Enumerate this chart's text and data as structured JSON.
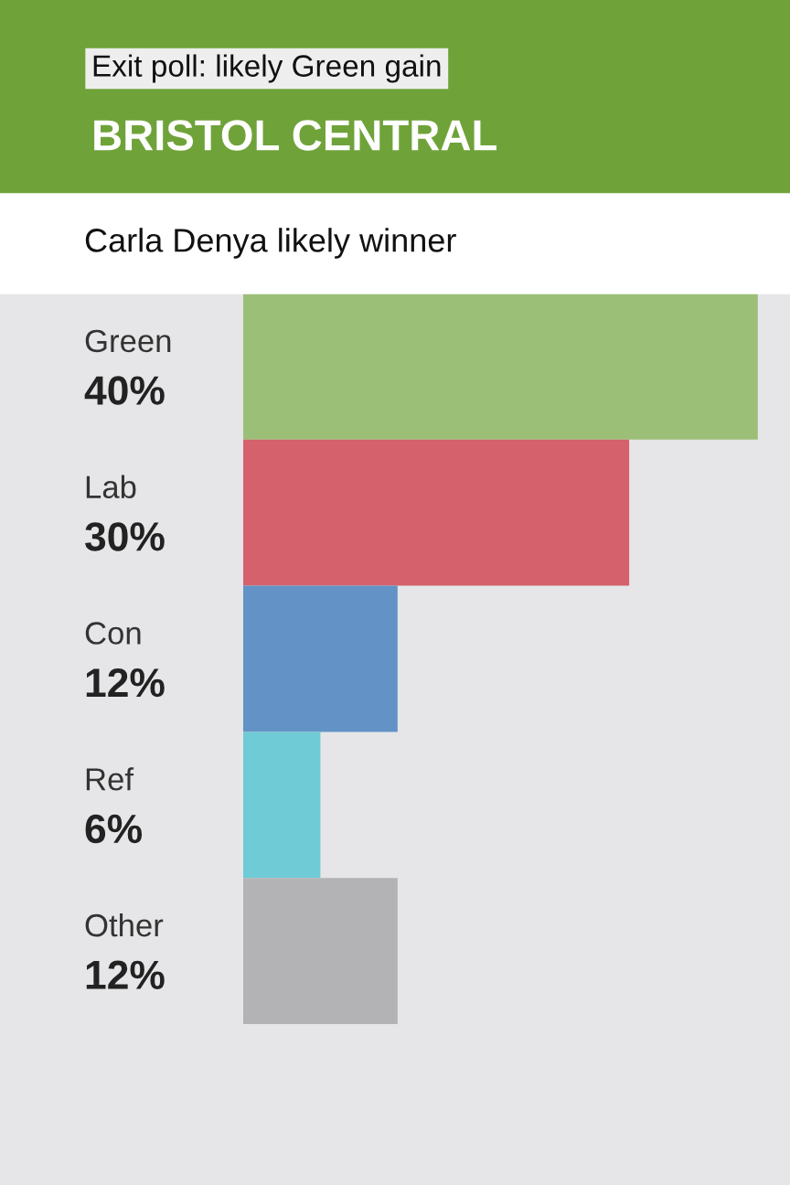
{
  "chart_data": {
    "type": "bar",
    "orientation": "horizontal",
    "title": "Exit poll: likely Green gain",
    "subtitle": "BRISTOL CENTRAL",
    "annotations": [
      "Carla Denya likely winner"
    ],
    "categories": [
      "Green",
      "Lab",
      "Con",
      "Ref",
      "Other"
    ],
    "values": [
      40,
      30,
      12,
      6,
      12
    ],
    "value_labels": [
      "40%",
      "30%",
      "12%",
      "6%",
      "12%"
    ],
    "colors": [
      "#9cbf78",
      "#d4616b",
      "#6393c6",
      "#6fcbd5",
      "#b3b3b5"
    ],
    "xlim": [
      0,
      42.5
    ]
  }
}
